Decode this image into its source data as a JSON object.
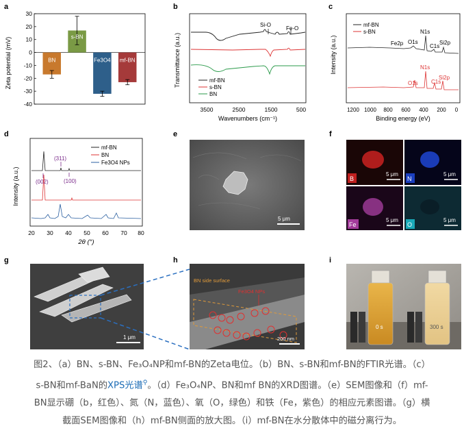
{
  "panels": {
    "a": {
      "letter": "a",
      "ylabel": "Zeta potential (mV)",
      "yticks": [
        "30",
        "20",
        "10",
        "0",
        "-10",
        "-20",
        "-30",
        "-40"
      ],
      "bars": [
        {
          "label": "BN",
          "value": -17,
          "err": 3,
          "color": "#c8792d"
        },
        {
          "label": "s-BN",
          "value": 17,
          "err": 11,
          "color": "#7a9a45"
        },
        {
          "label": "Fe3O4",
          "value": -32,
          "err": 2,
          "color": "#2e5f8a"
        },
        {
          "label": "mf-BN",
          "value": -23,
          "err": 2,
          "color": "#a53a3a"
        }
      ]
    },
    "b": {
      "letter": "b",
      "ylabel": "Transmittance (a.u.)",
      "xlabel": "Wavenumbers (cm⁻¹)",
      "xticks": [
        "3500",
        "2500",
        "1500",
        "500"
      ],
      "annotations": [
        "Si-O",
        "Fe-O"
      ],
      "legend": [
        "mf-BN",
        "s-BN",
        "BN"
      ]
    },
    "c": {
      "letter": "c",
      "ylabel": "Intensity (a.u.)",
      "xlabel": "Binding energy (eV)",
      "xticks": [
        "1200",
        "1000",
        "800",
        "600",
        "400",
        "200",
        "0"
      ],
      "legend": [
        "mf-BN",
        "s-BN"
      ],
      "peaks_top": [
        "Fe2p",
        "O1s",
        "N1s",
        "C1s",
        "Si2p"
      ],
      "peaks_bottom": [
        "N1s",
        "O1s",
        "C1s",
        "Si2p"
      ]
    },
    "d": {
      "letter": "d",
      "ylabel": "Intensity (a.u.)",
      "xlabel": "2θ (°)",
      "xticks": [
        "20",
        "30",
        "40",
        "50",
        "60",
        "70",
        "80"
      ],
      "legend": [
        "mf-BN",
        "BN",
        "Fe3O4 NPs"
      ],
      "peaks": [
        "(311)",
        "(002)",
        "(100)"
      ]
    },
    "e": {
      "letter": "e",
      "scale": "5 μm"
    },
    "f": {
      "letter": "f",
      "tiles": [
        {
          "label": "B",
          "scale": "5 μm"
        },
        {
          "label": "N",
          "scale": "5 μm"
        },
        {
          "label": "Fe",
          "scale": "5 μm"
        },
        {
          "label": "O",
          "scale": "5 μm"
        }
      ]
    },
    "g": {
      "letter": "g",
      "scale": "1 μm"
    },
    "h": {
      "letter": "h",
      "label1": "BN side surface",
      "label2": "Fe3O4 NPs",
      "scale": "200 nm"
    },
    "i": {
      "letter": "i",
      "left": "0 s",
      "right": "300 s"
    }
  },
  "caption": {
    "line1": "图2、（a）BN、s-BN、Fe₃O₄NP和mf-BN的Zeta电位。（b）BN、s-BN和mf-BN的FTIR光谱。（c）",
    "line2a": "s-BN和mf-BaN的",
    "line2link": "XPS光谱",
    "line2b": "。（d）Fe₃O₄NP、BN和mf BN的XRD图谱。（e）SEM图像和（f）mf-",
    "line3": "BN显示硼（b，红色）、氮（N，蓝色）、氧（O，绿色）和铁（Fe，紫色）的相应元素图谱。（g）横",
    "line4": "截面SEM图像和（h）mf-BN侧面的放大图。（i）mf-BN在水分散体中的磁分离行为。"
  }
}
